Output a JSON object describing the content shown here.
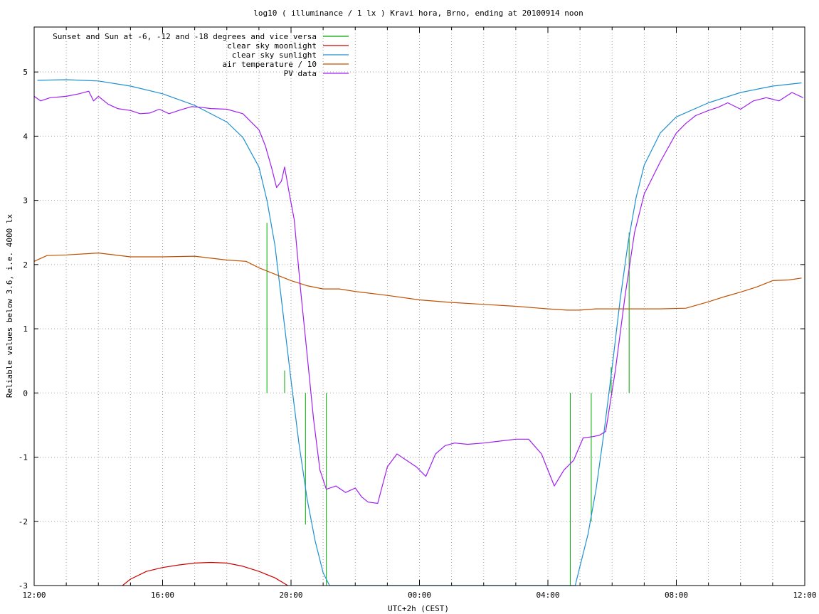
{
  "chart_data": {
    "type": "line",
    "title": "log10 ( illuminance / 1 lx ) Kravi hora, Brno, ending at 20100914 noon",
    "xlabel": "UTC+2h (CEST)",
    "ylabel": "Reliable values below 3.6, i.e. 4000 lx",
    "x_unit": "hours since 12:00 (UTC+2h)",
    "xlim": [
      0,
      24
    ],
    "ylim": [
      -3,
      5.7
    ],
    "x_ticks": [
      {
        "x": 0,
        "label": "12:00"
      },
      {
        "x": 4,
        "label": "16:00"
      },
      {
        "x": 8,
        "label": "20:00"
      },
      {
        "x": 12,
        "label": "00:00"
      },
      {
        "x": 16,
        "label": "04:00"
      },
      {
        "x": 20,
        "label": "08:00"
      },
      {
        "x": 24,
        "label": "12:00"
      }
    ],
    "x_minor_step": 1,
    "y_ticks": [
      {
        "y": 5,
        "label": "5"
      },
      {
        "y": 4,
        "label": "4"
      },
      {
        "y": 3,
        "label": "3"
      },
      {
        "y": 2,
        "label": "2"
      },
      {
        "y": 1,
        "label": "1"
      },
      {
        "y": 0,
        "label": "0"
      },
      {
        "y": -1,
        "label": "-1"
      },
      {
        "y": -2,
        "label": "-2"
      },
      {
        "y": -3,
        "label": "-3"
      }
    ],
    "grid": true,
    "legend_position": "top-left",
    "series": [
      {
        "name": "Sunset and Sun at -6, -12 and -18 degrees and vice versa",
        "color": "#00aa00",
        "style": "vlines",
        "segments": [
          {
            "x": 7.25,
            "y0": 0,
            "y1": 2.65
          },
          {
            "x": 7.8,
            "y0": 0,
            "y1": 0.35
          },
          {
            "x": 8.45,
            "y0": -2.05,
            "y1": 0
          },
          {
            "x": 9.1,
            "y0": -3,
            "y1": 0
          },
          {
            "x": 16.7,
            "y0": -3,
            "y1": 0
          },
          {
            "x": 17.35,
            "y0": -2.0,
            "y1": 0
          },
          {
            "x": 17.97,
            "y0": 0,
            "y1": 0.4
          },
          {
            "x": 18.53,
            "y0": 0,
            "y1": 2.5
          }
        ]
      },
      {
        "name": "clear sky moonlight",
        "color": "#cc0000",
        "points": [
          [
            2.75,
            -3
          ],
          [
            3,
            -2.9
          ],
          [
            3.5,
            -2.78
          ],
          [
            4,
            -2.72
          ],
          [
            4.5,
            -2.68
          ],
          [
            5,
            -2.65
          ],
          [
            5.5,
            -2.64
          ],
          [
            6,
            -2.65
          ],
          [
            6.5,
            -2.7
          ],
          [
            7,
            -2.78
          ],
          [
            7.5,
            -2.88
          ],
          [
            7.9,
            -3
          ]
        ]
      },
      {
        "name": "clear sky sunlight",
        "color": "#1e90d0",
        "points": [
          [
            0.1,
            4.87
          ],
          [
            1,
            4.88
          ],
          [
            2,
            4.86
          ],
          [
            3,
            4.78
          ],
          [
            4,
            4.66
          ],
          [
            5,
            4.48
          ],
          [
            6,
            4.22
          ],
          [
            6.5,
            3.98
          ],
          [
            7,
            3.52
          ],
          [
            7.25,
            3.0
          ],
          [
            7.5,
            2.3
          ],
          [
            7.75,
            1.25
          ],
          [
            8,
            0.2
          ],
          [
            8.25,
            -0.8
          ],
          [
            8.5,
            -1.65
          ],
          [
            8.75,
            -2.3
          ],
          [
            9,
            -2.8
          ],
          [
            9.2,
            -3
          ],
          [
            16.85,
            -3
          ],
          [
            17,
            -2.7
          ],
          [
            17.25,
            -2.2
          ],
          [
            17.5,
            -1.5
          ],
          [
            17.75,
            -0.6
          ],
          [
            18,
            0.4
          ],
          [
            18.25,
            1.45
          ],
          [
            18.5,
            2.35
          ],
          [
            18.75,
            3.05
          ],
          [
            19,
            3.55
          ],
          [
            19.5,
            4.05
          ],
          [
            20,
            4.3
          ],
          [
            21,
            4.52
          ],
          [
            22,
            4.68
          ],
          [
            23,
            4.78
          ],
          [
            23.9,
            4.83
          ]
        ]
      },
      {
        "name": "air temperature / 10",
        "color": "#c05000",
        "points": [
          [
            0,
            2.05
          ],
          [
            0.4,
            2.14
          ],
          [
            1,
            2.15
          ],
          [
            2,
            2.18
          ],
          [
            3,
            2.12
          ],
          [
            4,
            2.12
          ],
          [
            5,
            2.13
          ],
          [
            6,
            2.07
          ],
          [
            6.6,
            2.05
          ],
          [
            7,
            1.95
          ],
          [
            7.5,
            1.85
          ],
          [
            8,
            1.75
          ],
          [
            8.5,
            1.67
          ],
          [
            9,
            1.62
          ],
          [
            9.5,
            1.62
          ],
          [
            10,
            1.58
          ],
          [
            11,
            1.52
          ],
          [
            12,
            1.45
          ],
          [
            13,
            1.41
          ],
          [
            14,
            1.38
          ],
          [
            15,
            1.35
          ],
          [
            16,
            1.31
          ],
          [
            16.6,
            1.29
          ],
          [
            17,
            1.29
          ],
          [
            17.5,
            1.31
          ],
          [
            18.5,
            1.31
          ],
          [
            19.5,
            1.31
          ],
          [
            20.3,
            1.32
          ],
          [
            21,
            1.42
          ],
          [
            21.5,
            1.5
          ],
          [
            22,
            1.57
          ],
          [
            22.5,
            1.65
          ],
          [
            23,
            1.75
          ],
          [
            23.5,
            1.76
          ],
          [
            23.9,
            1.79
          ]
        ]
      },
      {
        "name": "PV data",
        "color": "#a020f0",
        "points": [
          [
            0,
            4.62
          ],
          [
            0.2,
            4.55
          ],
          [
            0.5,
            4.6
          ],
          [
            1,
            4.62
          ],
          [
            1.4,
            4.66
          ],
          [
            1.7,
            4.7
          ],
          [
            1.85,
            4.55
          ],
          [
            2,
            4.62
          ],
          [
            2.3,
            4.5
          ],
          [
            2.6,
            4.43
          ],
          [
            3,
            4.4
          ],
          [
            3.3,
            4.35
          ],
          [
            3.6,
            4.36
          ],
          [
            3.9,
            4.42
          ],
          [
            4.2,
            4.35
          ],
          [
            4.5,
            4.4
          ],
          [
            4.9,
            4.46
          ],
          [
            5.2,
            4.45
          ],
          [
            5.5,
            4.43
          ],
          [
            6,
            4.42
          ],
          [
            6.5,
            4.35
          ],
          [
            7,
            4.1
          ],
          [
            7.2,
            3.85
          ],
          [
            7.4,
            3.5
          ],
          [
            7.55,
            3.2
          ],
          [
            7.7,
            3.3
          ],
          [
            7.8,
            3.52
          ],
          [
            7.95,
            3.1
          ],
          [
            8.1,
            2.7
          ],
          [
            8.3,
            1.6
          ],
          [
            8.5,
            0.6
          ],
          [
            8.7,
            -0.4
          ],
          [
            8.9,
            -1.2
          ],
          [
            9.1,
            -1.5
          ],
          [
            9.4,
            -1.45
          ],
          [
            9.7,
            -1.55
          ],
          [
            10,
            -1.48
          ],
          [
            10.2,
            -1.62
          ],
          [
            10.4,
            -1.7
          ],
          [
            10.7,
            -1.72
          ],
          [
            11,
            -1.15
          ],
          [
            11.3,
            -0.95
          ],
          [
            11.6,
            -1.05
          ],
          [
            11.9,
            -1.15
          ],
          [
            12.2,
            -1.3
          ],
          [
            12.5,
            -0.95
          ],
          [
            12.8,
            -0.82
          ],
          [
            13.1,
            -0.78
          ],
          [
            13.5,
            -0.8
          ],
          [
            14,
            -0.78
          ],
          [
            14.5,
            -0.75
          ],
          [
            15,
            -0.72
          ],
          [
            15.4,
            -0.72
          ],
          [
            15.8,
            -0.95
          ],
          [
            16,
            -1.2
          ],
          [
            16.2,
            -1.45
          ],
          [
            16.5,
            -1.2
          ],
          [
            16.8,
            -1.05
          ],
          [
            17.1,
            -0.7
          ],
          [
            17.4,
            -0.68
          ],
          [
            17.6,
            -0.66
          ],
          [
            17.8,
            -0.6
          ],
          [
            18.1,
            0.35
          ],
          [
            18.4,
            1.5
          ],
          [
            18.7,
            2.5
          ],
          [
            19.0,
            3.1
          ],
          [
            19.5,
            3.6
          ],
          [
            20,
            4.05
          ],
          [
            20.3,
            4.2
          ],
          [
            20.6,
            4.32
          ],
          [
            21,
            4.4
          ],
          [
            21.3,
            4.45
          ],
          [
            21.6,
            4.52
          ],
          [
            22,
            4.42
          ],
          [
            22.4,
            4.55
          ],
          [
            22.8,
            4.6
          ],
          [
            23.2,
            4.55
          ],
          [
            23.6,
            4.68
          ],
          [
            23.95,
            4.6
          ]
        ]
      }
    ]
  }
}
